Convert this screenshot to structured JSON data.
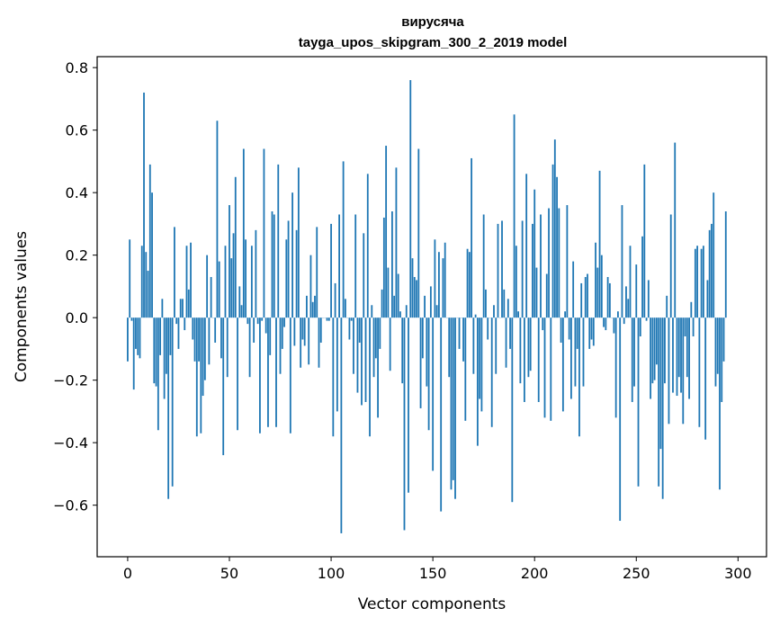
{
  "chart_data": {
    "type": "bar",
    "title": [
      "вирусяча",
      "tayga_upos_skipgram_300_2_2019 model"
    ],
    "xlabel": "Vector components",
    "ylabel": "Components values",
    "xlim": [
      -15,
      314
    ],
    "ylim": [
      -0.765,
      0.835
    ],
    "xticks": [
      0,
      50,
      100,
      150,
      200,
      250,
      300
    ],
    "yticks": [
      -0.6,
      -0.4,
      -0.2,
      0.0,
      0.2,
      0.4,
      0.6,
      0.8
    ],
    "ytick_labels": [
      "−0.6",
      "−0.4",
      "−0.2",
      "0.0",
      "0.2",
      "0.4",
      "0.6",
      "0.8"
    ],
    "grid": false,
    "bar_color": "#1f77b4",
    "values": [
      -0.14,
      0.25,
      -0.01,
      -0.23,
      -0.1,
      -0.12,
      -0.13,
      0.23,
      0.72,
      0.21,
      0.15,
      0.49,
      0.4,
      -0.21,
      -0.22,
      -0.36,
      -0.12,
      0.06,
      -0.26,
      -0.18,
      -0.58,
      -0.12,
      -0.54,
      0.29,
      -0.02,
      -0.1,
      0.06,
      0.06,
      -0.04,
      0.23,
      0.09,
      0.24,
      -0.07,
      -0.14,
      -0.38,
      -0.14,
      -0.37,
      -0.25,
      -0.2,
      0.2,
      -0.15,
      0.13,
      0.0,
      -0.08,
      0.63,
      0.18,
      -0.13,
      -0.44,
      0.23,
      -0.19,
      0.36,
      0.19,
      0.27,
      0.45,
      -0.36,
      0.1,
      0.04,
      0.54,
      0.25,
      -0.02,
      -0.19,
      0.23,
      -0.08,
      0.28,
      -0.02,
      -0.37,
      -0.01,
      0.54,
      -0.05,
      -0.35,
      -0.12,
      0.34,
      0.33,
      -0.35,
      0.49,
      -0.18,
      -0.1,
      -0.03,
      0.25,
      0.31,
      -0.37,
      0.4,
      -0.09,
      0.28,
      0.48,
      -0.16,
      -0.07,
      -0.09,
      0.07,
      -0.15,
      0.2,
      0.05,
      0.07,
      0.29,
      -0.16,
      -0.08,
      0.0,
      0.0,
      -0.01,
      -0.01,
      0.3,
      -0.38,
      0.11,
      -0.3,
      0.33,
      -0.69,
      0.5,
      0.06,
      0.0,
      -0.07,
      -0.01,
      -0.18,
      0.33,
      -0.24,
      -0.08,
      -0.28,
      0.27,
      -0.27,
      0.46,
      -0.38,
      0.04,
      -0.19,
      -0.13,
      -0.32,
      -0.1,
      0.09,
      0.32,
      0.55,
      0.16,
      -0.17,
      0.34,
      0.07,
      0.48,
      0.14,
      0.02,
      -0.21,
      -0.68,
      0.04,
      -0.56,
      0.76,
      0.19,
      0.13,
      0.12,
      0.54,
      -0.29,
      -0.13,
      0.07,
      -0.22,
      -0.36,
      0.1,
      -0.49,
      0.25,
      0.04,
      0.21,
      -0.62,
      0.19,
      0.24,
      0.0,
      -0.19,
      -0.55,
      -0.52,
      -0.58,
      0.0,
      -0.1,
      0.0,
      -0.14,
      -0.33,
      0.22,
      0.21,
      0.51,
      -0.18,
      0.01,
      -0.41,
      -0.26,
      -0.3,
      0.33,
      0.09,
      -0.07,
      0.0,
      -0.35,
      0.04,
      -0.18,
      0.3,
      0.0,
      0.31,
      0.09,
      -0.16,
      0.06,
      -0.1,
      -0.59,
      0.65,
      0.23,
      0.02,
      -0.21,
      0.31,
      -0.27,
      0.46,
      -0.19,
      -0.17,
      0.3,
      0.41,
      0.16,
      -0.27,
      0.33,
      -0.04,
      -0.32,
      0.14,
      0.35,
      -0.33,
      0.49,
      0.57,
      0.45,
      0.35,
      -0.08,
      -0.3,
      0.02,
      0.36,
      -0.07,
      -0.26,
      0.18,
      -0.22,
      -0.1,
      -0.38,
      0.11,
      -0.22,
      0.13,
      0.14,
      -0.1,
      -0.07,
      -0.09,
      0.24,
      0.16,
      0.47,
      0.2,
      -0.03,
      -0.04,
      0.13,
      0.11,
      0.0,
      -0.05,
      -0.32,
      0.02,
      -0.65,
      0.36,
      -0.02,
      0.1,
      0.06,
      0.23,
      -0.27,
      -0.22,
      0.17,
      -0.54,
      -0.06,
      0.26,
      0.49,
      -0.01,
      0.12,
      -0.26,
      -0.21,
      -0.2,
      -0.15,
      -0.54,
      -0.42,
      -0.58,
      -0.21,
      0.07,
      -0.34,
      0.33,
      -0.24,
      0.56,
      -0.25,
      -0.19,
      -0.24,
      -0.34,
      -0.06,
      -0.19,
      -0.26,
      0.05,
      -0.06,
      0.22,
      0.23,
      -0.35,
      0.22,
      0.23,
      -0.39,
      0.12,
      0.28,
      0.3,
      0.4,
      -0.22,
      -0.18,
      -0.55,
      -0.27,
      -0.14,
      0.34
    ]
  }
}
